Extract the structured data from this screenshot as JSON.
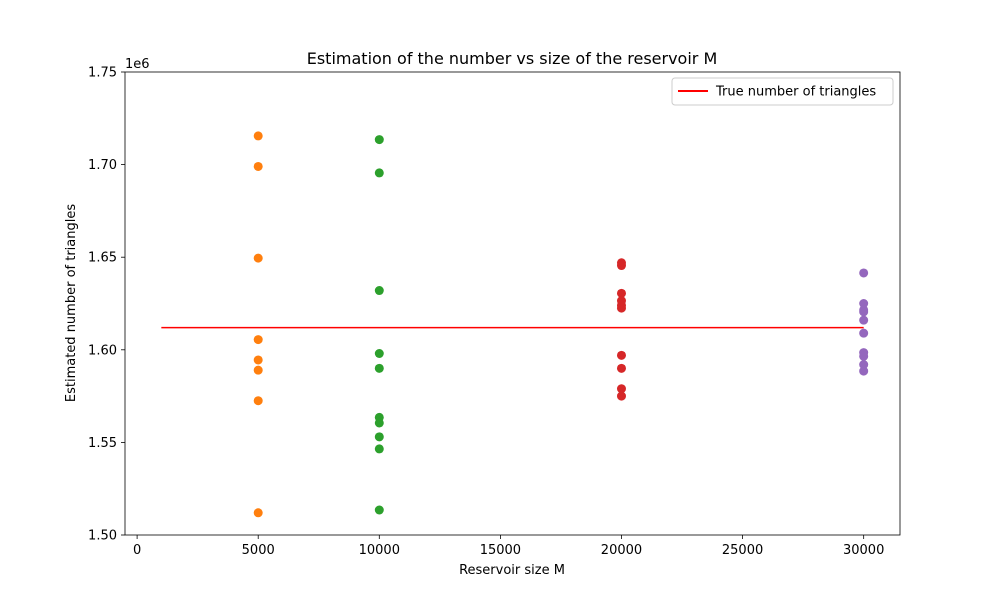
{
  "chart_data": {
    "type": "scatter",
    "title": "Estimation of the number vs size of the reservoir M",
    "xlabel": "Reservoir size M",
    "ylabel": "Estimated number of triangles",
    "y_offset_label": "1e6",
    "xlim": [
      -500,
      31500
    ],
    "ylim": [
      1.5,
      1.75
    ],
    "x_ticks": [
      0,
      5000,
      10000,
      15000,
      20000,
      25000,
      30000
    ],
    "x_tick_labels": [
      "0",
      "5000",
      "10000",
      "15000",
      "20000",
      "25000",
      "30000"
    ],
    "y_ticks": [
      1.5,
      1.55,
      1.6,
      1.65,
      1.7,
      1.75
    ],
    "y_tick_labels": [
      "1.50",
      "1.55",
      "1.60",
      "1.65",
      "1.70",
      "1.75"
    ],
    "grid": false,
    "legend_position": "top-right",
    "series": [
      {
        "color": "#ff7f0e",
        "x": 5000,
        "values": [
          1.7155,
          1.699,
          1.6495,
          1.6055,
          1.5945,
          1.589,
          1.5725,
          1.512
        ]
      },
      {
        "color": "#2ca02c",
        "x": 10000,
        "values": [
          1.7135,
          1.6955,
          1.632,
          1.598,
          1.59,
          1.5635,
          1.5605,
          1.553,
          1.5465,
          1.5135
        ]
      },
      {
        "color": "#d62728",
        "x": 20000,
        "values": [
          1.647,
          1.6455,
          1.6305,
          1.6265,
          1.624,
          1.6225,
          1.597,
          1.59,
          1.579,
          1.575
        ]
      },
      {
        "color": "#9467bd",
        "x": 30000,
        "values": [
          1.6415,
          1.625,
          1.6215,
          1.6205,
          1.616,
          1.609,
          1.5985,
          1.5965,
          1.592,
          1.5885
        ]
      },
      {
        "name": "True number of triangles",
        "type": "line",
        "color": "#ff0000",
        "x": [
          1000,
          30000
        ],
        "values": [
          1.612,
          1.612
        ]
      }
    ]
  }
}
